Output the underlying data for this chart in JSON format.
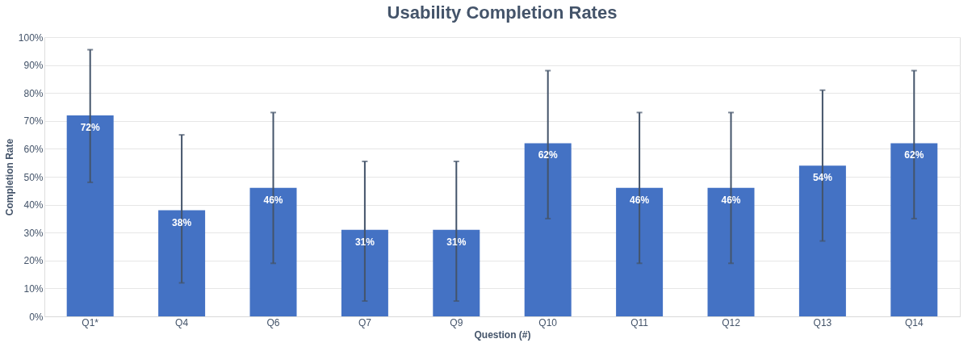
{
  "chart_data": {
    "type": "bar",
    "title": "Usability Completion Rates",
    "xlabel": "Question (#)",
    "ylabel": "Completion Rate",
    "categories": [
      "Q1*",
      "Q4",
      "Q6",
      "Q7",
      "Q9",
      "Q10",
      "Q11",
      "Q12",
      "Q13",
      "Q14"
    ],
    "values": [
      72,
      38,
      46,
      31,
      31,
      62,
      46,
      46,
      54,
      62
    ],
    "value_labels": [
      "72%",
      "38%",
      "46%",
      "31%",
      "31%",
      "62%",
      "46%",
      "46%",
      "54%",
      "62%"
    ],
    "errors": [
      [
        48,
        95.5
      ],
      [
        12,
        65
      ],
      [
        19,
        73
      ],
      [
        5.5,
        55.5
      ],
      [
        5.5,
        55.5
      ],
      [
        35,
        88
      ],
      [
        19,
        73
      ],
      [
        19,
        73
      ],
      [
        27,
        81
      ],
      [
        35,
        88
      ]
    ],
    "color": "#4472c4",
    "ylim": [
      0,
      100
    ],
    "yticks": [
      {
        "value": 0,
        "label": "0%"
      },
      {
        "value": 10,
        "label": "10%"
      },
      {
        "value": 20,
        "label": "20%"
      },
      {
        "value": 30,
        "label": "30%"
      },
      {
        "value": 40,
        "label": "40%"
      },
      {
        "value": 50,
        "label": "50%"
      },
      {
        "value": 60,
        "label": "60%"
      },
      {
        "value": 70,
        "label": "70%"
      },
      {
        "value": 80,
        "label": "80%"
      },
      {
        "value": 90,
        "label": "90%"
      },
      {
        "value": 100,
        "label": "100%"
      }
    ],
    "grid": "y"
  }
}
